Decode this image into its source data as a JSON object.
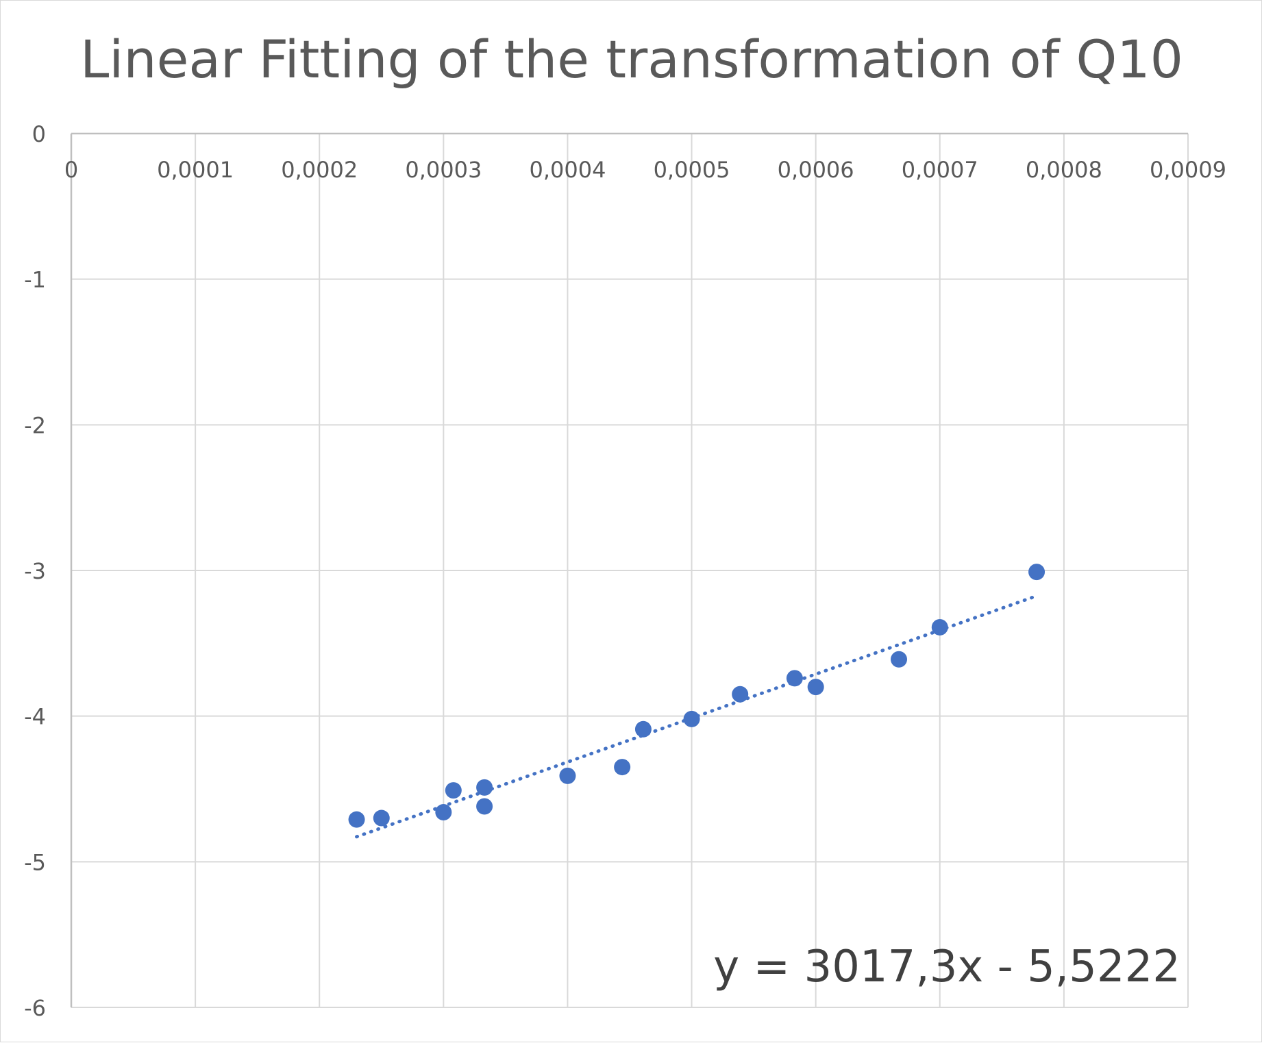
{
  "chart_data": {
    "type": "scatter",
    "title": "Linear Fitting of the transformation of Q10",
    "xlabel": "",
    "ylabel": "",
    "xlim": [
      0,
      0.0009
    ],
    "ylim": [
      -6,
      0
    ],
    "x_axis_position": "top",
    "grid": true,
    "legend": "none",
    "x_ticks": [
      "0",
      "0,0001",
      "0,0002",
      "0,0003",
      "0,0004",
      "0,0005",
      "0,0006",
      "0,0007",
      "0,0008",
      "0,0009"
    ],
    "y_ticks": [
      "0",
      "-1",
      "-2",
      "-3",
      "-4",
      "-5",
      "-6"
    ],
    "series": [
      {
        "marker_color": "#4472C4",
        "points": [
          {
            "x": 0.00023,
            "y": -4.71
          },
          {
            "x": 0.00025,
            "y": -4.7
          },
          {
            "x": 0.0003,
            "y": -4.66
          },
          {
            "x": 0.000308,
            "y": -4.51
          },
          {
            "x": 0.000333,
            "y": -4.49
          },
          {
            "x": 0.000333,
            "y": -4.62
          },
          {
            "x": 0.0004,
            "y": -4.41
          },
          {
            "x": 0.000444,
            "y": -4.35
          },
          {
            "x": 0.000461,
            "y": -4.09
          },
          {
            "x": 0.0005,
            "y": -4.02
          },
          {
            "x": 0.000539,
            "y": -3.85
          },
          {
            "x": 0.000583,
            "y": -3.74
          },
          {
            "x": 0.0006,
            "y": -3.8
          },
          {
            "x": 0.000667,
            "y": -3.61
          },
          {
            "x": 0.0007,
            "y": -3.39
          },
          {
            "x": 0.000778,
            "y": -3.01
          }
        ]
      }
    ],
    "trendline": {
      "type": "linear",
      "style": "dotted",
      "color": "#4472C4",
      "slope": 3017.3,
      "intercept": -5.5222,
      "x_range": [
        0.00023,
        0.000778
      ],
      "equation_label": "y = 3017,3x - 5,5222"
    }
  }
}
